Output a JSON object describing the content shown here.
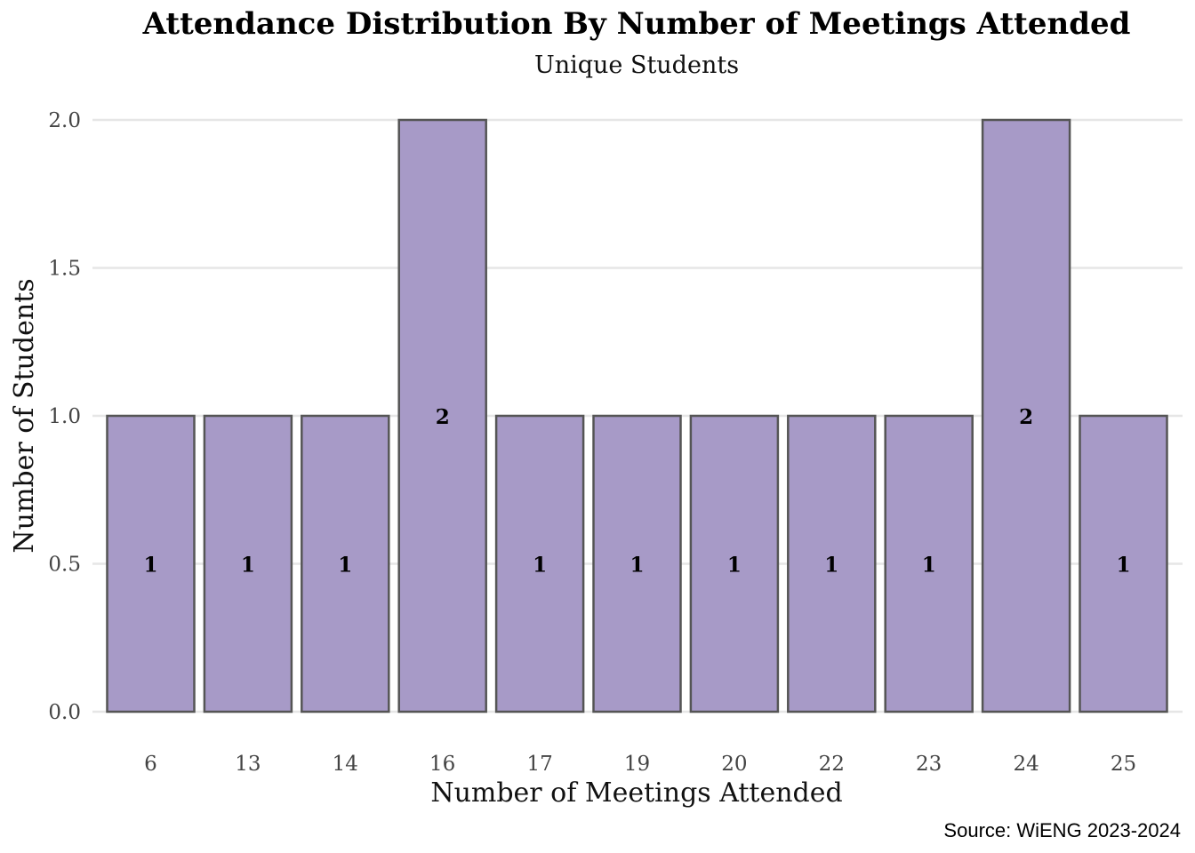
{
  "chart_data": {
    "type": "bar",
    "title": "Attendance Distribution By Number of Meetings Attended",
    "subtitle": "Unique Students",
    "xlabel": "Number of Meetings Attended",
    "ylabel": "Number of Students",
    "categories": [
      "6",
      "13",
      "14",
      "16",
      "17",
      "19",
      "20",
      "22",
      "23",
      "24",
      "25"
    ],
    "values": [
      1,
      1,
      1,
      2,
      1,
      1,
      1,
      1,
      1,
      2,
      1
    ],
    "data_labels": [
      "1",
      "1",
      "1",
      "2",
      "1",
      "1",
      "1",
      "1",
      "1",
      "2",
      "1"
    ],
    "ylim": [
      0,
      2
    ],
    "yticks": [
      0,
      0.5,
      1,
      1.5,
      2
    ],
    "ytick_labels": [
      "0.0",
      "0.5",
      "1.0",
      "1.5",
      "2.0"
    ],
    "grid": true,
    "legend": "none",
    "bar_color": "#a79ac7",
    "bar_outline_color": "#555555",
    "caption": "Source: WiENG 2023-2024"
  }
}
